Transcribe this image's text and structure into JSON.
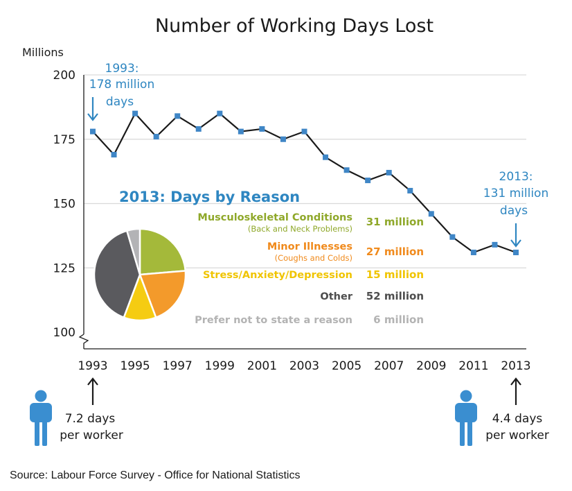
{
  "chart_data": {
    "type": "line",
    "title": "Number of Working Days Lost",
    "ylabel": "Millions",
    "ylim": [
      100,
      200
    ],
    "yticks": [
      100,
      125,
      150,
      175,
      200
    ],
    "xticks": [
      1993,
      1995,
      1997,
      1999,
      2001,
      2003,
      2005,
      2007,
      2009,
      2011,
      2013
    ],
    "x": [
      1993,
      1994,
      1995,
      1996,
      1997,
      1998,
      1999,
      2000,
      2001,
      2002,
      2003,
      2004,
      2005,
      2006,
      2007,
      2008,
      2009,
      2010,
      2011,
      2012,
      2013
    ],
    "values": [
      178,
      169,
      185,
      176,
      184,
      179,
      185,
      178,
      179,
      175,
      178,
      168,
      163,
      159,
      162,
      155,
      146,
      137,
      131,
      134,
      131
    ],
    "colors": {
      "line": "#1a1a1a",
      "marker": "#3f86c6",
      "grid": "#d9d9d9",
      "annotation": "#2e86c1"
    },
    "annotations": {
      "start": [
        "1993:",
        "178 million",
        "days"
      ],
      "end": [
        "2013:",
        "131 million",
        "days"
      ]
    },
    "pie": {
      "type": "pie",
      "title": "2013: Days by Reason",
      "slices": [
        {
          "label": "Musculoskeletal Conditions",
          "sublabel": "(Back and Neck Problems)",
          "value_label": "31 million",
          "value": 31,
          "color": "#a4b93a"
        },
        {
          "label": "Minor Illnesses",
          "sublabel": "(Coughs and Colds)",
          "value_label": "27 million",
          "value": 27,
          "color": "#f39a2b"
        },
        {
          "label": "Stress/Anxiety/Depression",
          "sublabel": "",
          "value_label": "15 million",
          "value": 15,
          "color": "#f5cc12"
        },
        {
          "label": "Other",
          "sublabel": "",
          "value_label": "52 million",
          "value": 52,
          "color": "#5a5a5e"
        },
        {
          "label": "Prefer not to state a reason",
          "sublabel": "",
          "value_label": "6 million",
          "value": 6,
          "color": "#b3b3b6"
        }
      ],
      "text_colors": [
        "#8fa82a",
        "#f08a1c",
        "#f0c400",
        "#4d4d4d",
        "#b3b3b3"
      ]
    },
    "workers": {
      "left": {
        "icon": "person-icon",
        "lines": [
          "7.2 days",
          "per worker"
        ]
      },
      "right": {
        "icon": "person-icon",
        "lines": [
          "4.4 days",
          "per worker"
        ]
      }
    },
    "source": "Source: Labour Force Survey - Office for National Statistics"
  }
}
